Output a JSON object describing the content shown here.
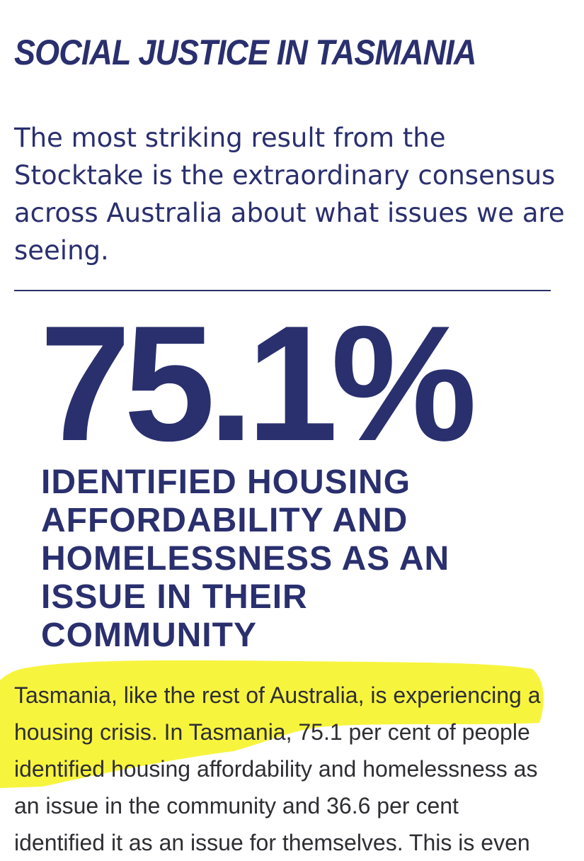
{
  "section": {
    "title": "SOCIAL JUSTICE IN TASMANIA"
  },
  "intro": {
    "text": "The most striking result from the Stocktake is the extraordinary consensus across Australia about what issues we are seeing."
  },
  "statistic": {
    "value": "75.1%",
    "caption_lines": [
      "IDENTIFIED HOUSING",
      "AFFORDABILITY AND",
      "HOMELESSNESS AS AN",
      "ISSUE IN THEIR",
      "COMMUNITY"
    ]
  },
  "body": {
    "lines": [
      "Tasmania, like the rest of Australia, is experiencing a",
      "housing crisis. In Tasmania, 75.1 per cent of people",
      "identified housing affordability and homelessness as",
      "an issue in the community and 36.6 per cent",
      "identified it as an issue for themselves. This is even"
    ]
  },
  "colors": {
    "brand_navy": "#2a2f6e",
    "highlighter_yellow": "#f6f21c",
    "body_text": "#2e2e33"
  }
}
